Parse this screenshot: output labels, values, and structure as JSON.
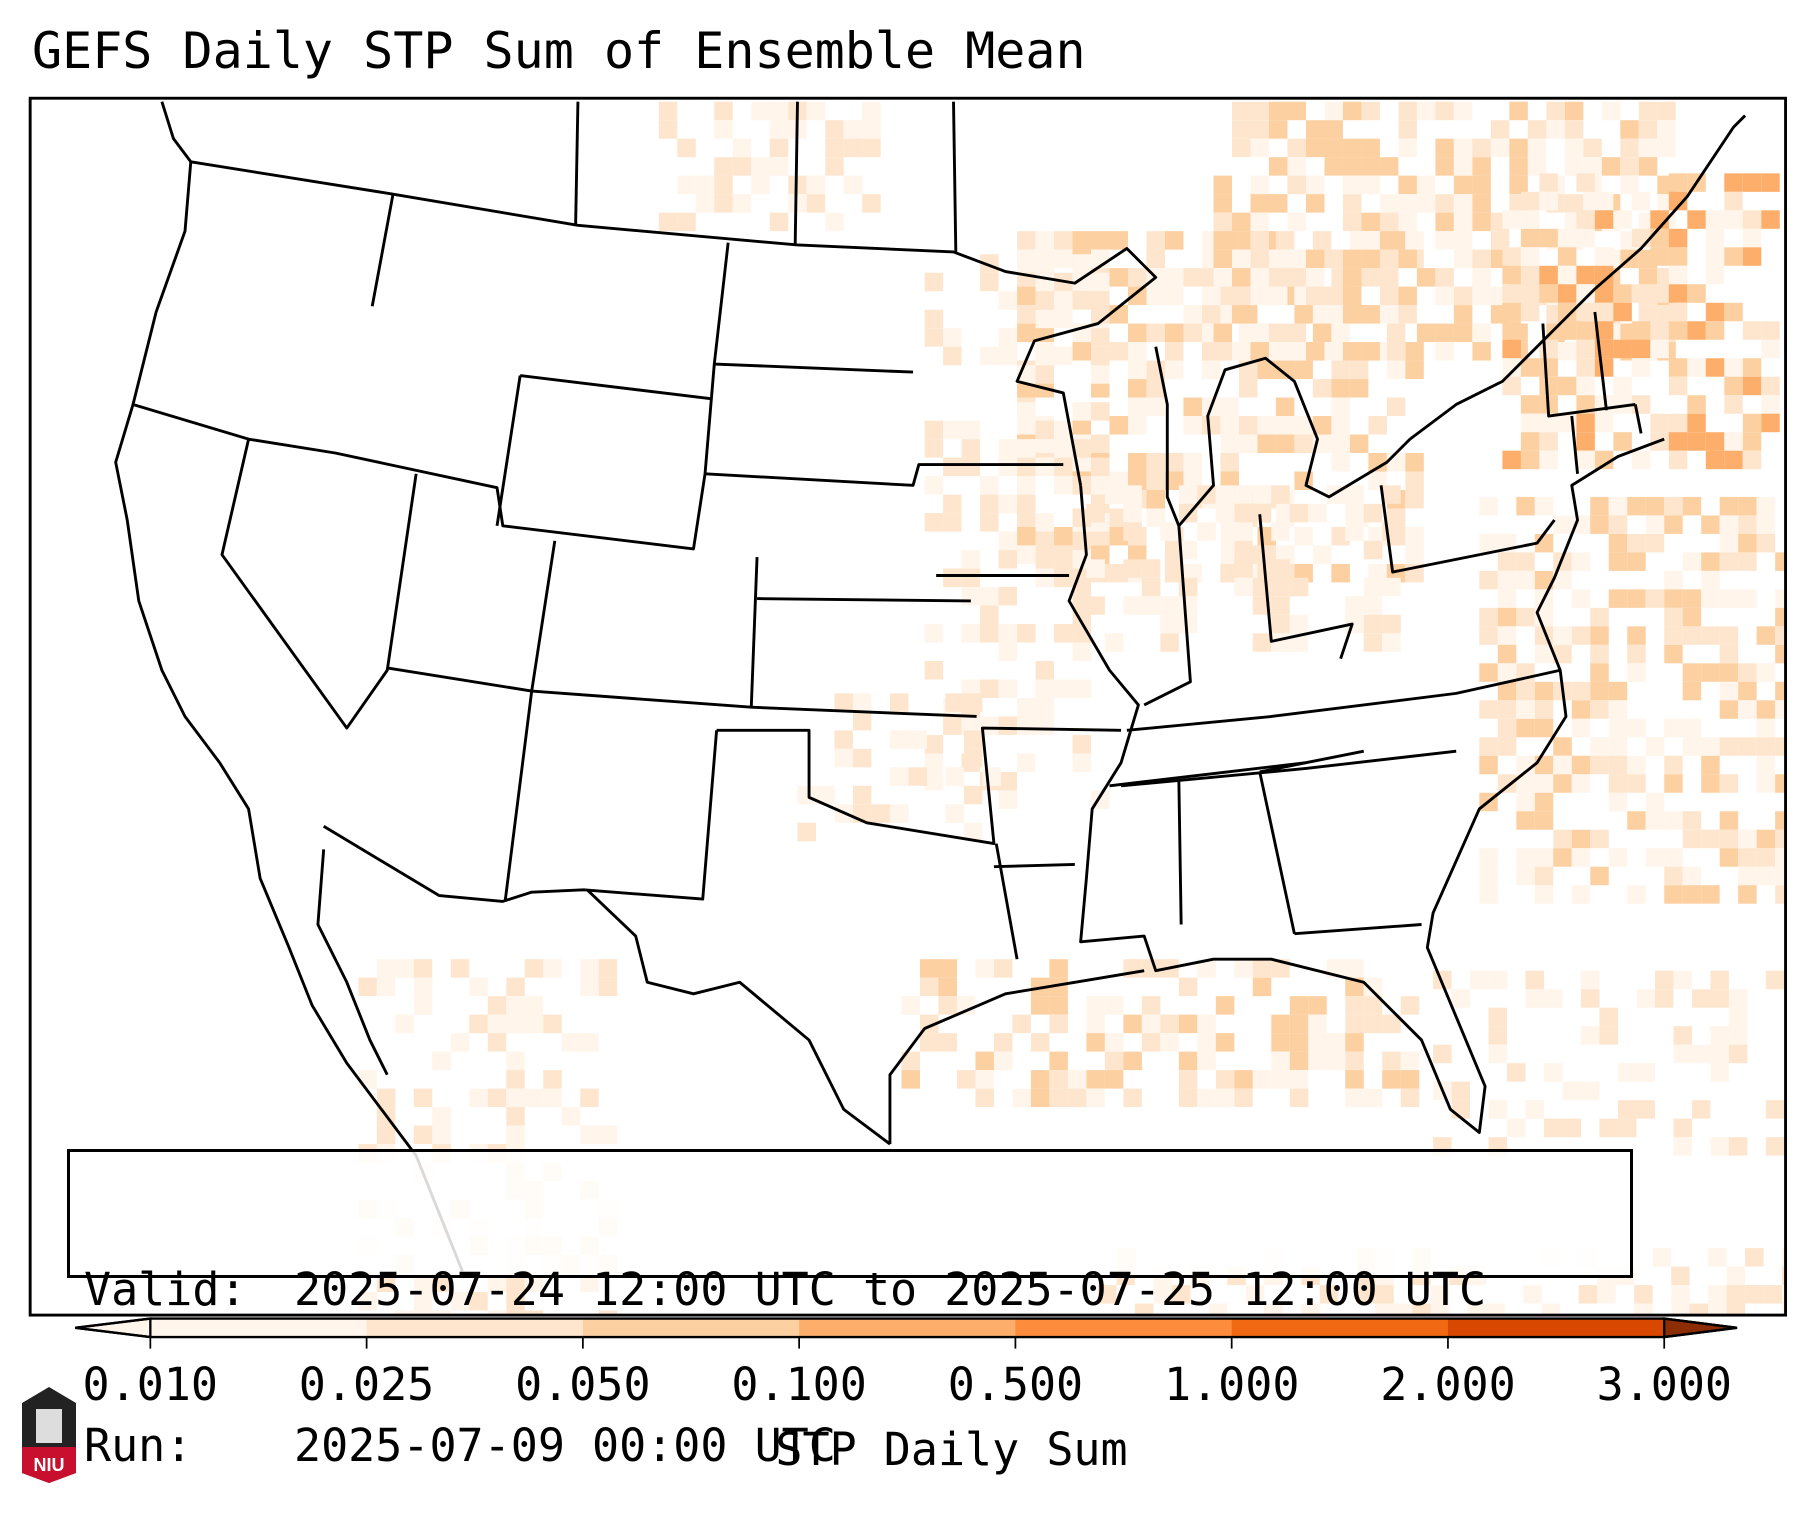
{
  "title": "GEFS Daily STP Sum of Ensemble Mean",
  "info": {
    "valid_label": "Valid:",
    "valid_value": "2025-07-24 12:00 UTC to 2025-07-25 12:00 UTC",
    "run_label": "Run:",
    "run_value": "2025-07-09 00:00 UTC"
  },
  "colorbar": {
    "label": "STP Daily Sum",
    "ticks": [
      "0.010",
      "0.025",
      "0.050",
      "0.100",
      "0.500",
      "1.000",
      "2.000",
      "3.000"
    ],
    "colors": [
      "#fff5eb",
      "#fee6ce",
      "#fdd0a2",
      "#fdae6b",
      "#fd8d3c",
      "#f16913",
      "#d94801",
      "#8c2d04"
    ],
    "extend": "both"
  },
  "logo": {
    "text": "NIU"
  }
}
